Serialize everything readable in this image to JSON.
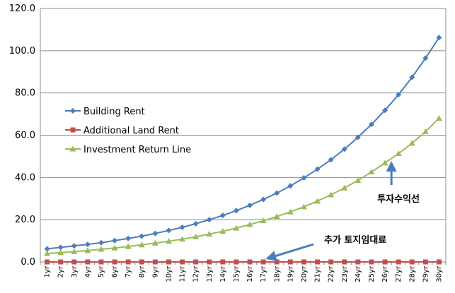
{
  "chart_data": {
    "type": "line",
    "categories": [
      "1yr",
      "2yr",
      "3yr",
      "4yr",
      "5yr",
      "6yr",
      "7yr",
      "8yr",
      "9yr",
      "10yr",
      "11yr",
      "12yr",
      "13yr",
      "14yr",
      "15yr",
      "16yr",
      "17yr",
      "18yr",
      "19yr",
      "20yr",
      "21yr",
      "22yr",
      "23yr",
      "24yr",
      "25yr",
      "26yr",
      "27yr",
      "28yr",
      "29yr",
      "30yr"
    ],
    "series": [
      {
        "name": "Building Rent",
        "color": "#4A7EBB",
        "marker": "diamond",
        "values": [
          6.2,
          6.9,
          7.6,
          8.3,
          9.1,
          10.1,
          11.1,
          12.2,
          13.5,
          14.9,
          16.4,
          18.1,
          20.0,
          22.0,
          24.3,
          26.8,
          29.6,
          32.6,
          36.0,
          39.8,
          43.9,
          48.4,
          53.4,
          59.0,
          65.1,
          71.8,
          79.2,
          87.4,
          96.5,
          106.2
        ]
      },
      {
        "name": "Additional Land Rent",
        "color": "#C0504D",
        "marker": "square",
        "values": [
          0,
          0,
          0,
          0,
          0,
          0,
          0,
          0,
          0,
          0,
          0,
          0,
          0,
          0,
          0,
          0,
          0,
          0,
          0,
          0,
          0,
          0,
          0,
          0,
          0,
          0,
          0,
          0,
          0,
          0
        ]
      },
      {
        "name": "Investment Return Line",
        "color": "#9BBB59",
        "marker": "triangle",
        "values": [
          4.0,
          4.4,
          4.9,
          5.4,
          6.0,
          6.6,
          7.3,
          8.1,
          8.9,
          9.8,
          10.8,
          11.9,
          13.2,
          14.5,
          16.0,
          17.7,
          19.5,
          21.5,
          23.7,
          26.1,
          28.8,
          31.8,
          35.0,
          38.6,
          42.6,
          46.9,
          51.3,
          56.2,
          61.7,
          68.0
        ]
      }
    ],
    "y_ticks": [
      "0.0",
      "20.0",
      "40.0",
      "60.0",
      "80.0",
      "100.0",
      "120.0"
    ],
    "ylim": [
      0,
      120
    ],
    "grid": "horizontal",
    "legend_position": "left-middle",
    "annotations": [
      {
        "text": "투자수익선",
        "points_to": "Investment Return Line",
        "at_category": "27yr"
      },
      {
        "text": "추가 토지임대료",
        "points_to": "Additional Land Rent",
        "at_category": "17yr"
      }
    ],
    "arrow_color": "#4A7EBB"
  }
}
